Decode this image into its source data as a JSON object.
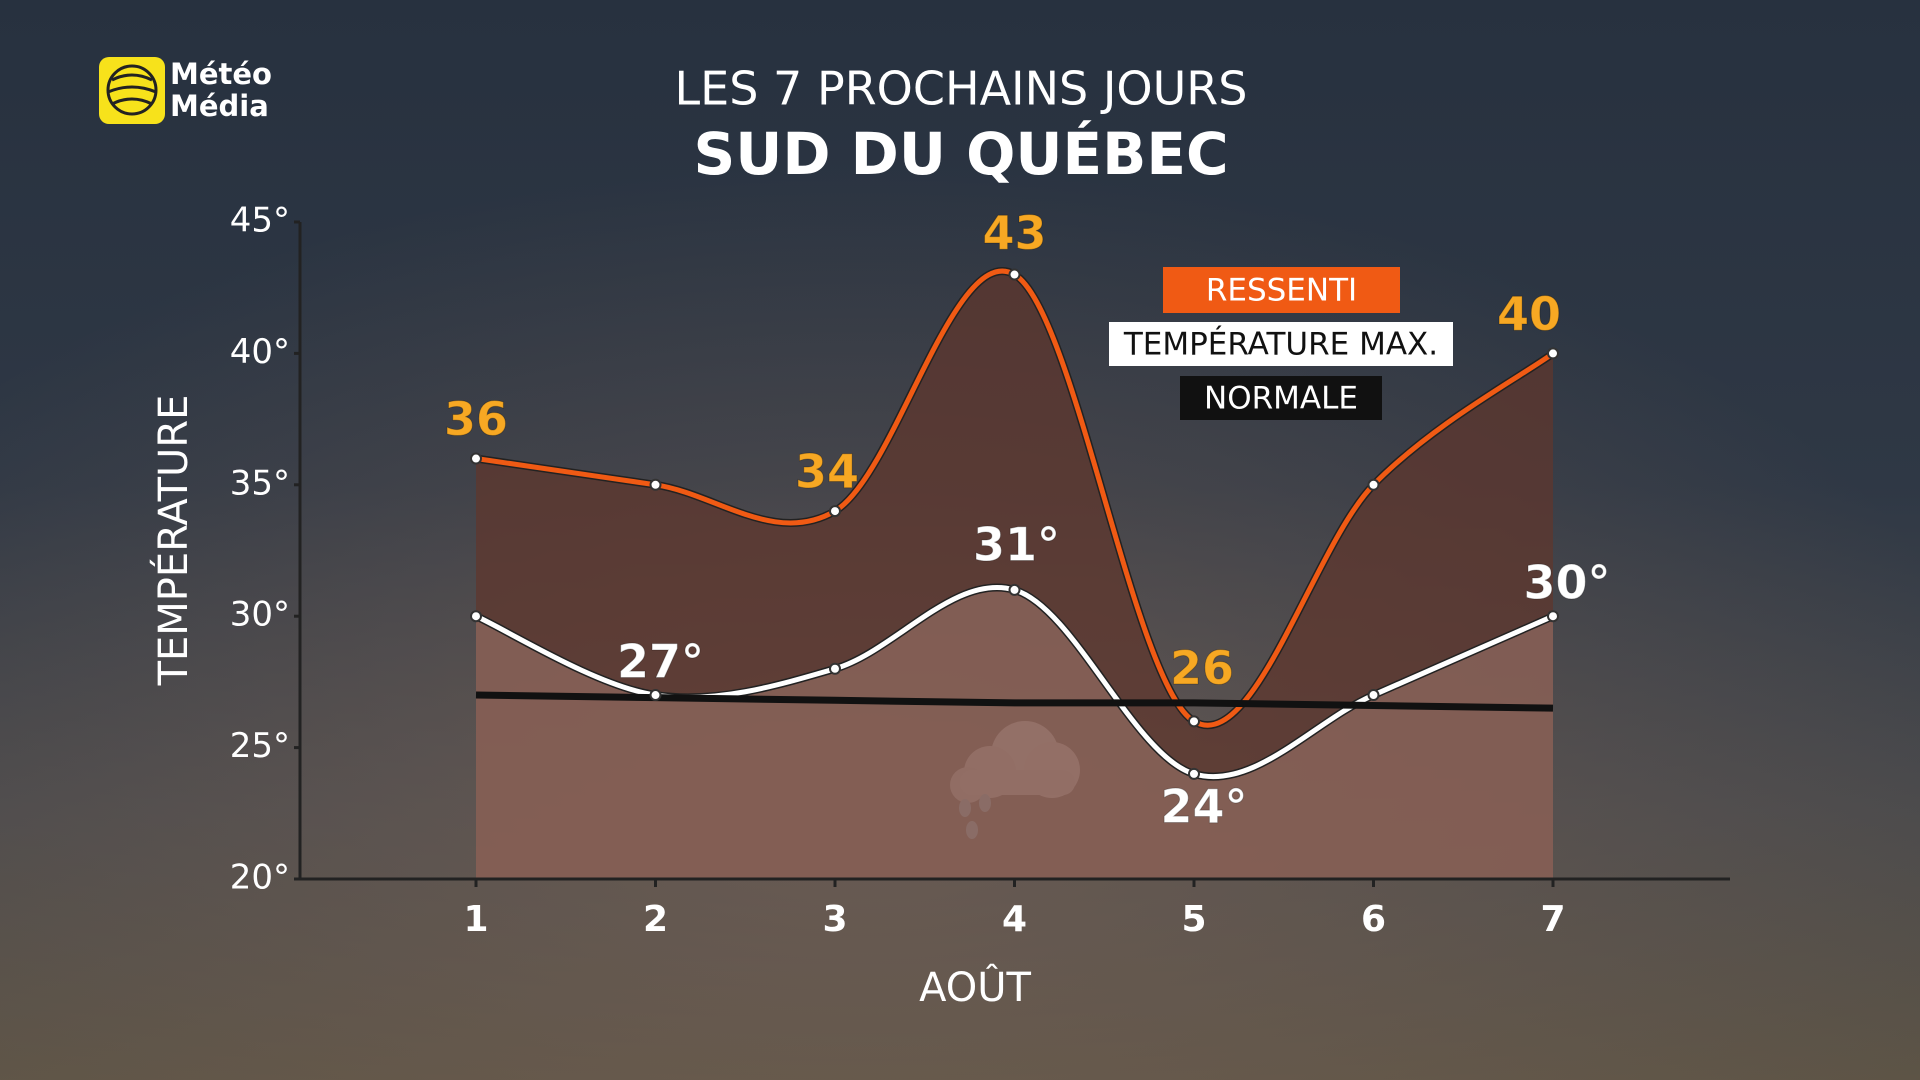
{
  "chart_data": {
    "type": "line",
    "logo": [
      "Météo",
      "Média"
    ],
    "title": "LES 7 PROCHAINS JOURS",
    "subtitle": "SUD DU QUÉBEC",
    "x_label": "AOÛT",
    "y_label": "TEMPÉRATURE",
    "categories": [
      "1",
      "2",
      "3",
      "4",
      "5",
      "6",
      "7"
    ],
    "ylim": [
      20,
      45
    ],
    "yticks": [
      {
        "value": 20,
        "label": "20°"
      },
      {
        "value": 25,
        "label": "25°"
      },
      {
        "value": 30,
        "label": "30°"
      },
      {
        "value": 35,
        "label": "35°"
      },
      {
        "value": 40,
        "label": "40°"
      },
      {
        "value": 45,
        "label": "45°"
      }
    ],
    "series": [
      {
        "name": "RESSENTI",
        "color": "#f05a14",
        "label_color": "#f7a823",
        "values": [
          36,
          35,
          34,
          43,
          26,
          35,
          40
        ],
        "value_labels": [
          "36",
          null,
          "34",
          "43",
          "26",
          null,
          "40"
        ]
      },
      {
        "name": "TEMPÉRATURE MAX.",
        "color": "#ffffff",
        "label_color": "#ffffff",
        "values": [
          30,
          27,
          28,
          31,
          24,
          27,
          30
        ],
        "value_labels": [
          null,
          "27°",
          null,
          "31°",
          "24°",
          null,
          "30°"
        ]
      },
      {
        "name": "NORMALE",
        "color": "#111111",
        "values": [
          27,
          26.9,
          26.8,
          26.7,
          26.7,
          26.6,
          26.5
        ]
      }
    ]
  }
}
